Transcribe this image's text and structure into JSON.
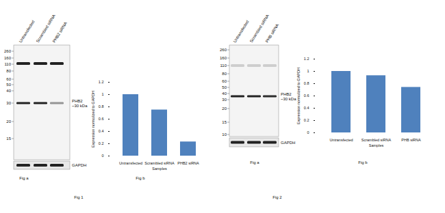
{
  "figures": [
    {
      "caption": "Fig 1",
      "blot": {
        "caption": "Fig a",
        "lanes": [
          "Untransfected",
          "Scrambled siRNA",
          "PHB2 siRNA"
        ],
        "markers": [
          260,
          160,
          110,
          80,
          60,
          50,
          40,
          30,
          20,
          15
        ],
        "target_label": [
          "PHB2",
          "~30 kDa"
        ],
        "loading_control": "GAPDH"
      }
    },
    {
      "caption": "Fig 2",
      "blot": {
        "caption": "Fig a",
        "lanes": [
          "Untransfected",
          "Scrambled siRNA",
          "PHB siRNA"
        ],
        "markers": [
          260,
          160,
          110,
          80,
          60,
          50,
          40,
          30,
          20,
          15,
          10
        ],
        "target_label": [
          "PHB2",
          "~30 kDa"
        ],
        "loading_control": "GAPDH"
      }
    }
  ],
  "chart_data": [
    {
      "type": "bar",
      "caption": "Fig b",
      "y_label": "Expression normalized to GAPDH",
      "x_label": "Samples",
      "categories": [
        "Untransfected",
        "Scrambled siRNA",
        "PHB2 siRNA"
      ],
      "values": [
        1.0,
        0.75,
        0.23
      ],
      "color": "#4f81bd",
      "ylim": [
        0,
        1.2
      ],
      "yticks": [
        0,
        0.2,
        0.4,
        0.6,
        0.8,
        1,
        1.2
      ],
      "grid": false
    },
    {
      "type": "bar",
      "caption": "Fig b",
      "y_label": "Expression normalized to GAPDH",
      "x_label": "Samples",
      "categories": [
        "Untransfected",
        "Scrambled siRNA",
        "PHB siRNA"
      ],
      "values": [
        1.0,
        0.93,
        0.74
      ],
      "color": "#4f81bd",
      "ylim": [
        0,
        1.2
      ],
      "yticks": [
        0,
        0.2,
        0.4,
        0.6,
        0.8,
        1,
        1.2
      ],
      "grid": false
    }
  ]
}
